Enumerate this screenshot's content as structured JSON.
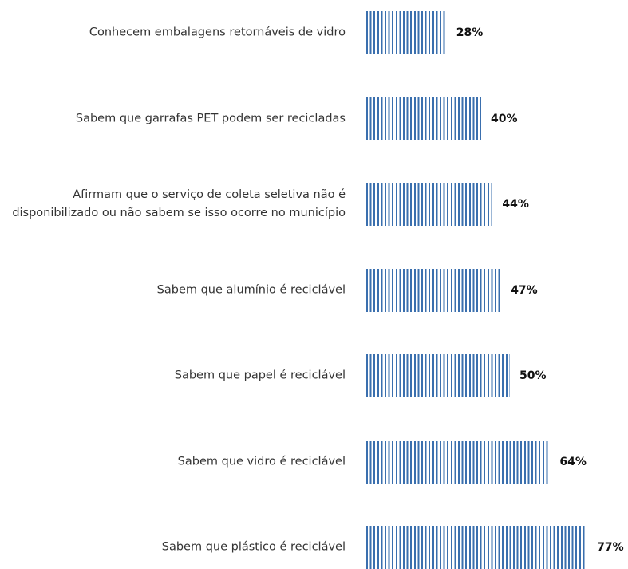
{
  "chart_data": {
    "type": "bar",
    "orientation": "horizontal",
    "categories": [
      "Conhecem embalagens retornáveis de vidro",
      "Sabem que garrafas PET podem ser recicladas",
      "Afirmam que o serviço de coleta seletiva não é disponibilizado ou não sabem se isso ocorre no município",
      "Sabem que alumínio é reciclável",
      "Sabem que papel é reciclável",
      "Sabem que vidro é reciclável",
      "Sabem que plástico é reciclável"
    ],
    "values": [
      28,
      40,
      44,
      47,
      50,
      64,
      77
    ],
    "value_labels": [
      "28%",
      "40%",
      "44%",
      "47%",
      "50%",
      "64%",
      "77%"
    ],
    "color": "#3a6fae"
  }
}
